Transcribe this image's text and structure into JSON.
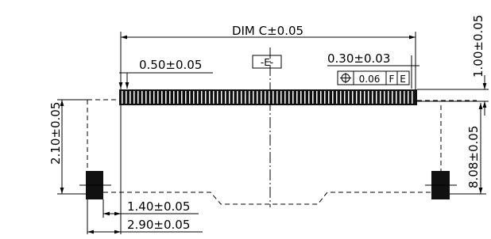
{
  "drawing": {
    "overall_length": "DIM C±0.05",
    "pitch": "0.50±0.05",
    "datum": "-E-",
    "pin_width": "0.30±0.03",
    "tolerance_frame": {
      "tolerance": "0.06",
      "datums": [
        "F",
        "E"
      ]
    },
    "pin_height": "1.00±0.05",
    "left_height": "2.10±0.05",
    "right_height": "8.08±0.05",
    "peg_offset": "1.40±0.05",
    "peg_outer": "2.90±0.05"
  }
}
